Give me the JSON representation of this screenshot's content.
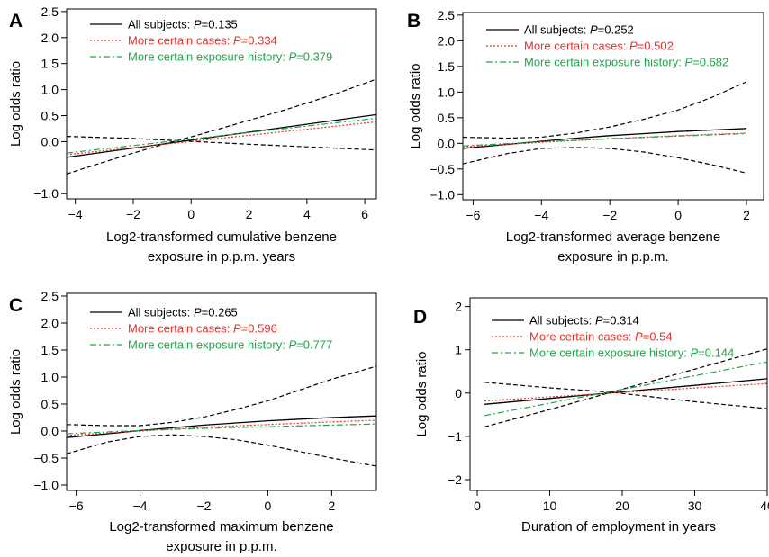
{
  "chart_data": [
    {
      "type": "line",
      "panel_label": "A",
      "xlabel": [
        "Log2-transformed cumulative benzene",
        "exposure in p.p.m. years"
      ],
      "ylabel": "Log odds ratio",
      "xlim": [
        -4.3,
        6.4
      ],
      "ylim": [
        -1.1,
        2.55
      ],
      "xticks": [
        -4,
        -2,
        0,
        2,
        4,
        6
      ],
      "xtick_labels": [
        "−4",
        "−2",
        "0",
        "2",
        "4",
        "6"
      ],
      "yticks": [
        -1.0,
        0.0,
        0.5,
        1.0,
        1.5,
        2.0,
        2.5
      ],
      "ytick_labels": [
        "−1.0",
        "0.0",
        "0.5",
        "1.0",
        "1.5",
        "2.0",
        "2.5"
      ],
      "series": [
        {
          "key": "all",
          "name": "All subjects: ",
          "p_label": "P",
          "p_value": "=0.135",
          "color": "#000000",
          "dash": "",
          "x": [
            -4.3,
            6.4
          ],
          "y": [
            -0.3,
            0.52
          ]
        },
        {
          "key": "cases",
          "name": "More certain cases: ",
          "p_label": "P",
          "p_value": "=0.334",
          "color": "#e8312b",
          "dash": "2,2",
          "x": [
            -4.3,
            6.4
          ],
          "y": [
            -0.25,
            0.38
          ]
        },
        {
          "key": "exposure",
          "name": "More certain exposure history: ",
          "p_label": "P",
          "p_value": "=0.379",
          "color": "#1fa64a",
          "dash": "7,3,2,3",
          "x": [
            -4.3,
            6.4
          ],
          "y": [
            -0.22,
            0.45
          ]
        }
      ],
      "ci_upper": {
        "x": [
          -4.3,
          -3,
          -2,
          -1,
          -0.5,
          0,
          1,
          2,
          3,
          4,
          5,
          6.4
        ],
        "y": [
          -0.62,
          -0.39,
          -0.22,
          -0.06,
          0.02,
          0.09,
          0.25,
          0.41,
          0.57,
          0.74,
          0.92,
          1.2
        ]
      },
      "ci_lower": {
        "x": [
          -4.3,
          -2,
          -0.5,
          2,
          4,
          6.4
        ],
        "y": [
          0.1,
          0.06,
          0.02,
          -0.05,
          -0.1,
          -0.16
        ]
      }
    },
    {
      "type": "line",
      "panel_label": "B",
      "xlabel": [
        "Log2-transformed average benzene",
        "exposure in p.p.m."
      ],
      "ylabel": "Log odds ratio",
      "xlim": [
        -6.3,
        2.5
      ],
      "ylim": [
        -1.1,
        2.55
      ],
      "xticks": [
        -6,
        -4,
        -2,
        0,
        2
      ],
      "xtick_labels": [
        "−6",
        "−4",
        "−2",
        "0",
        "2"
      ],
      "yticks": [
        -1.0,
        -0.5,
        0.0,
        0.5,
        1.0,
        1.5,
        2.0,
        2.5
      ],
      "ytick_labels": [
        "−1.0",
        "−0.5",
        "0.0",
        "0.5",
        "1.0",
        "1.5",
        "2.0",
        "2.5"
      ],
      "series": [
        {
          "key": "all",
          "name": "All subjects: ",
          "p_label": "P",
          "p_value": "=0.252",
          "color": "#000000",
          "dash": "",
          "x": [
            -6.3,
            -5,
            -4,
            -3,
            -2,
            -1,
            0,
            1,
            2
          ],
          "y": [
            -0.1,
            -0.02,
            0.04,
            0.1,
            0.15,
            0.19,
            0.23,
            0.26,
            0.29
          ]
        },
        {
          "key": "cases",
          "name": "More certain cases: ",
          "p_label": "P",
          "p_value": "=0.502",
          "color": "#e8312b",
          "dash": "2,2",
          "x": [
            -6.3,
            -4,
            -2,
            0,
            2
          ],
          "y": [
            -0.07,
            0.02,
            0.09,
            0.15,
            0.2
          ]
        },
        {
          "key": "exposure",
          "name": "More certain exposure history: ",
          "p_label": "P",
          "p_value": "=0.682",
          "color": "#1fa64a",
          "dash": "7,3,2,3",
          "x": [
            -6.3,
            -4,
            -2,
            0,
            2
          ],
          "y": [
            -0.05,
            0.03,
            0.09,
            0.14,
            0.19
          ]
        }
      ],
      "ci_upper": {
        "x": [
          -6.3,
          -5,
          -4,
          -3,
          -2,
          -1,
          0,
          1,
          2
        ],
        "y": [
          0.12,
          0.1,
          0.12,
          0.2,
          0.32,
          0.47,
          0.65,
          0.9,
          1.2
        ]
      },
      "ci_lower": {
        "x": [
          -6.3,
          -5,
          -4,
          -3,
          -2,
          -1,
          0,
          1,
          2
        ],
        "y": [
          -0.4,
          -0.2,
          -0.1,
          -0.08,
          -0.1,
          -0.17,
          -0.28,
          -0.42,
          -0.58
        ]
      }
    },
    {
      "type": "line",
      "panel_label": "C",
      "xlabel": [
        "Log2-transformed maximum benzene",
        "exposure in p.p.m."
      ],
      "ylabel": "Log odds ratio",
      "xlim": [
        -6.3,
        3.4
      ],
      "ylim": [
        -1.1,
        2.55
      ],
      "xticks": [
        -6,
        -4,
        -2,
        0,
        2
      ],
      "xtick_labels": [
        "−6",
        "−4",
        "−2",
        "0",
        "2"
      ],
      "yticks": [
        -1.0,
        -0.5,
        0.0,
        0.5,
        1.0,
        1.5,
        2.0,
        2.5
      ],
      "ytick_labels": [
        "−1.0",
        "−0.5",
        "0.0",
        "0.5",
        "1.0",
        "1.5",
        "2.0",
        "2.5"
      ],
      "series": [
        {
          "key": "all",
          "name": "All subjects: ",
          "p_label": "P",
          "p_value": "=0.265",
          "color": "#000000",
          "dash": "",
          "x": [
            -6.3,
            -5,
            -4,
            -3,
            -2,
            -1,
            0,
            1,
            2,
            3.4
          ],
          "y": [
            -0.12,
            -0.05,
            0.01,
            0.06,
            0.11,
            0.15,
            0.19,
            0.22,
            0.25,
            0.28
          ]
        },
        {
          "key": "cases",
          "name": "More certain cases: ",
          "p_label": "P",
          "p_value": "=0.596",
          "color": "#e8312b",
          "dash": "2,2",
          "x": [
            -6.3,
            -4,
            -2,
            0,
            2,
            3.4
          ],
          "y": [
            -0.08,
            0.0,
            0.07,
            0.12,
            0.17,
            0.2
          ]
        },
        {
          "key": "exposure",
          "name": "More certain exposure history: ",
          "p_label": "P",
          "p_value": "=0.777",
          "color": "#1fa64a",
          "dash": "7,3,2,3",
          "x": [
            -6.3,
            -4,
            -2,
            0,
            2,
            3.4
          ],
          "y": [
            -0.05,
            0.01,
            0.05,
            0.08,
            0.11,
            0.13
          ]
        }
      ],
      "ci_upper": {
        "x": [
          -6.3,
          -5,
          -4,
          -3,
          -2,
          -1,
          0,
          1,
          2,
          3.4
        ],
        "y": [
          0.12,
          0.1,
          0.1,
          0.16,
          0.26,
          0.4,
          0.56,
          0.76,
          0.96,
          1.2
        ]
      },
      "ci_lower": {
        "x": [
          -6.3,
          -5,
          -4,
          -3,
          -2,
          -1,
          0,
          1,
          2,
          3.4
        ],
        "y": [
          -0.42,
          -0.2,
          -0.1,
          -0.07,
          -0.1,
          -0.16,
          -0.26,
          -0.38,
          -0.5,
          -0.65
        ]
      }
    },
    {
      "type": "line",
      "panel_label": "D",
      "xlabel": [
        "Duration of employment in years"
      ],
      "ylabel": "Log odds ratio",
      "xlim": [
        -1,
        40
      ],
      "ylim": [
        -2.25,
        2.2
      ],
      "xticks": [
        0,
        10,
        20,
        30,
        40
      ],
      "xtick_labels": [
        "0",
        "10",
        "20",
        "30",
        "40"
      ],
      "yticks": [
        -2,
        -1,
        0,
        1,
        2
      ],
      "ytick_labels": [
        "−2",
        "−1",
        "0",
        "1",
        "2"
      ],
      "series": [
        {
          "key": "all",
          "name": "All subjects: ",
          "p_label": "P",
          "p_value": "=0.314",
          "color": "#000000",
          "dash": "",
          "x": [
            1,
            40
          ],
          "y": [
            -0.26,
            0.33
          ]
        },
        {
          "key": "cases",
          "name": "More certain cases: ",
          "p_label": "P",
          "p_value": "=0.54",
          "color": "#e8312b",
          "dash": "2,2",
          "x": [
            1,
            40
          ],
          "y": [
            -0.18,
            0.22
          ]
        },
        {
          "key": "exposure",
          "name": "More certain exposure history: ",
          "p_label": "P",
          "p_value": "=0.144",
          "color": "#1fa64a",
          "dash": "7,3,2,3",
          "x": [
            1,
            40
          ],
          "y": [
            -0.52,
            0.72
          ]
        }
      ],
      "ci_upper": {
        "x": [
          1,
          10,
          18.5,
          30,
          40
        ],
        "y": [
          -0.78,
          -0.38,
          0.02,
          0.55,
          1.02
        ]
      },
      "ci_lower": {
        "x": [
          1,
          10,
          18.5,
          30,
          40
        ],
        "y": [
          0.25,
          0.12,
          0.02,
          -0.2,
          -0.36
        ]
      }
    }
  ]
}
